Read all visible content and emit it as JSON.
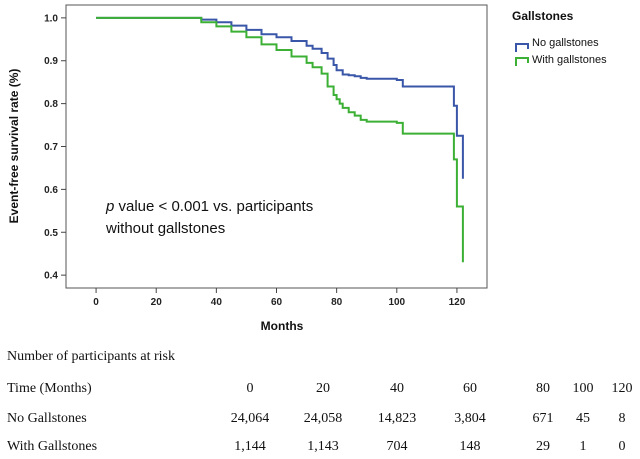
{
  "chart_data": {
    "type": "line",
    "title": "",
    "xlabel": "Months",
    "ylabel": "Event-free survival rate (%)",
    "xlim": [
      -10,
      130
    ],
    "ylim": [
      0.37,
      1.03
    ],
    "x_ticks": [
      0,
      20,
      40,
      60,
      80,
      100,
      120
    ],
    "y_ticks": [
      0.4,
      0.5,
      0.6,
      0.7,
      0.8,
      0.9,
      1.0
    ],
    "legend": {
      "title": "Gallstones",
      "position": "right-outside-top",
      "entries": [
        "No gallstones",
        "With gallstones"
      ]
    },
    "annotation": {
      "p_symbol": "p",
      "line1_rest": " value < 0.001 vs. participants",
      "line2": "without gallstones"
    },
    "series": [
      {
        "name": "No gallstones",
        "color": "#3a56a8",
        "x": [
          0,
          30,
          35,
          40,
          45,
          50,
          55,
          60,
          65,
          70,
          72,
          75,
          77,
          79,
          80,
          82,
          84,
          86,
          88,
          90,
          100,
          102,
          110,
          118,
          119,
          120,
          121,
          122
        ],
        "y": [
          1.0,
          1.0,
          0.996,
          0.99,
          0.982,
          0.972,
          0.962,
          0.955,
          0.946,
          0.935,
          0.928,
          0.918,
          0.905,
          0.89,
          0.878,
          0.868,
          0.866,
          0.864,
          0.86,
          0.858,
          0.855,
          0.84,
          0.84,
          0.84,
          0.795,
          0.725,
          0.725,
          0.625
        ]
      },
      {
        "name": "With gallstones",
        "color": "#3cb034",
        "x": [
          0,
          30,
          35,
          40,
          45,
          50,
          55,
          60,
          65,
          70,
          72,
          75,
          77,
          79,
          80,
          81,
          82,
          84,
          86,
          88,
          90,
          100,
          102,
          110,
          118,
          119,
          120,
          121,
          122
        ],
        "y": [
          1.0,
          1.0,
          0.99,
          0.98,
          0.968,
          0.955,
          0.938,
          0.925,
          0.91,
          0.895,
          0.885,
          0.87,
          0.84,
          0.82,
          0.81,
          0.8,
          0.79,
          0.78,
          0.772,
          0.762,
          0.758,
          0.755,
          0.73,
          0.73,
          0.73,
          0.67,
          0.56,
          0.56,
          0.43
        ]
      }
    ]
  },
  "risk_table": {
    "heading": "Number of participants at risk",
    "time_label": "Time (Months)",
    "times": [
      "0",
      "20",
      "40",
      "60",
      "80",
      "100",
      "120"
    ],
    "rows": [
      {
        "label": "No Gallstones",
        "values": [
          "24,064",
          "24,058",
          "14,823",
          "3,804",
          "671",
          "45",
          "8"
        ]
      },
      {
        "label": "With Gallstones",
        "values": [
          "1,144",
          "1,143",
          "704",
          "148",
          "29",
          "1",
          "0"
        ]
      }
    ]
  }
}
